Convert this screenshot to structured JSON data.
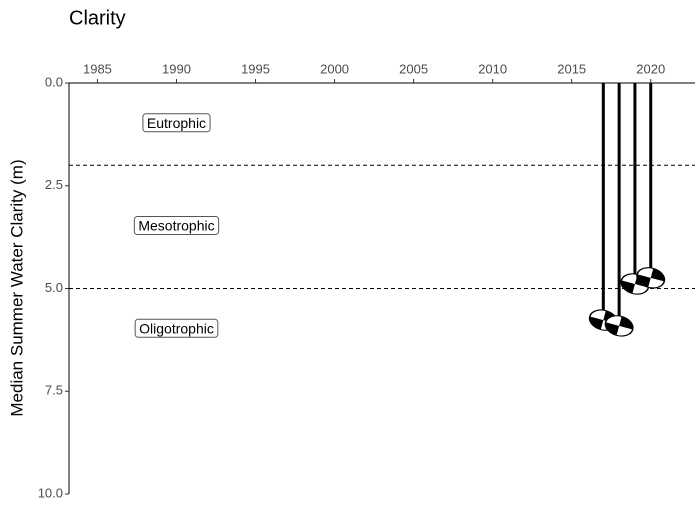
{
  "chart_data": {
    "type": "secchi",
    "title": "Clarity",
    "y_label": "Median Summer Water Clarity (m)",
    "x": [
      2017,
      2018,
      2019,
      2020
    ],
    "values": [
      5.77,
      5.91,
      4.89,
      4.74
    ],
    "xlim": [
      1983.2,
      2022.8
    ],
    "xticks": [
      1985,
      1990,
      1995,
      2000,
      2005,
      2010,
      2015,
      2020
    ],
    "ylim": [
      0,
      10
    ],
    "y_reversed": true,
    "yticks": [
      {
        "value": 0,
        "label": "0.0"
      },
      {
        "value": 2.5,
        "label": "2.5"
      },
      {
        "value": 5,
        "label": "5.0"
      },
      {
        "value": 7.5,
        "label": "7.5"
      },
      {
        "value": 10,
        "label": "10.0"
      }
    ],
    "thresholds": [
      2,
      5
    ],
    "zones": [
      "Eutrophic",
      "Mesotrophic",
      "Oligotrophic"
    ],
    "color": "#000000"
  }
}
